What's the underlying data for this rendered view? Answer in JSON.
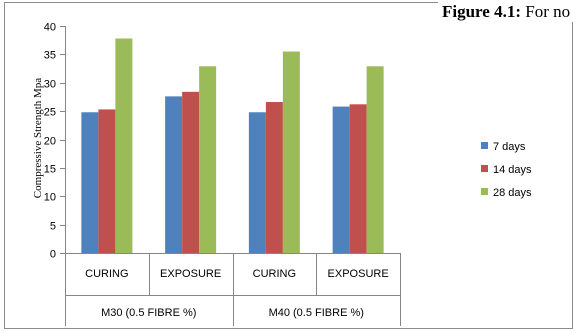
{
  "header_fragment": {
    "bold": "Figure 4.1:",
    "rest": " For no"
  },
  "chart_data": {
    "type": "bar",
    "title": "",
    "xlabel": "",
    "ylabel": "Compressive Strength Mpa",
    "ylim": [
      0,
      40
    ],
    "yticks": [
      0,
      5,
      10,
      15,
      20,
      25,
      30,
      35,
      40
    ],
    "categories": [
      "CURING",
      "EXPOSURE",
      "CURING",
      "EXPOSURE"
    ],
    "groups": [
      {
        "label": "M30  (0.5 FIBRE %)",
        "categories": [
          "CURING",
          "EXPOSURE"
        ]
      },
      {
        "label": "M40  (0.5 FIBRE %)",
        "categories": [
          "CURING",
          "EXPOSURE"
        ]
      }
    ],
    "series": [
      {
        "name": "7 days",
        "color": "#4F81BD",
        "values": [
          24.8,
          27.6,
          24.8,
          25.8
        ]
      },
      {
        "name": "14 days",
        "color": "#C0504D",
        "values": [
          25.3,
          28.4,
          26.6,
          26.2
        ]
      },
      {
        "name": "28 days",
        "color": "#9BBB59",
        "values": [
          37.8,
          32.9,
          35.5,
          32.9
        ]
      }
    ],
    "grid": false,
    "legend_position": "right"
  }
}
